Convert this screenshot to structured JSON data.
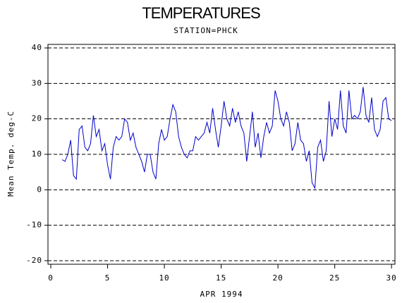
{
  "chart_data": {
    "type": "line",
    "title": "TEMPERATURES",
    "subtitle": "STATION=PHCK",
    "x_label": "APR 1994",
    "y_label": "Mean Temp. deg-C",
    "xlim": [
      -0.25,
      30.3
    ],
    "xticks": [
      0,
      5,
      10,
      15,
      20,
      25,
      30
    ],
    "ylim": [
      -21,
      41
    ],
    "yticks": [
      -20,
      -10,
      0,
      10,
      20,
      30,
      40
    ],
    "grid": true,
    "x": [
      1,
      1.25,
      1.5,
      1.75,
      2,
      2.25,
      2.5,
      2.75,
      3,
      3.25,
      3.5,
      3.75,
      4,
      4.25,
      4.5,
      4.75,
      5,
      5.25,
      5.5,
      5.75,
      6,
      6.25,
      6.5,
      6.75,
      7,
      7.25,
      7.5,
      7.75,
      8,
      8.25,
      8.5,
      8.75,
      9,
      9.25,
      9.5,
      9.75,
      10,
      10.25,
      10.5,
      10.75,
      11,
      11.25,
      11.5,
      11.75,
      12,
      12.25,
      12.5,
      12.75,
      13,
      13.25,
      13.5,
      13.75,
      14,
      14.25,
      14.5,
      14.75,
      15,
      15.25,
      15.5,
      15.75,
      16,
      16.25,
      16.5,
      16.75,
      17,
      17.25,
      17.5,
      17.75,
      18,
      18.25,
      18.5,
      18.75,
      19,
      19.25,
      19.5,
      19.75,
      20,
      20.25,
      20.5,
      20.75,
      21,
      21.25,
      21.5,
      21.75,
      22,
      22.25,
      22.5,
      22.75,
      23,
      23.25,
      23.5,
      23.75,
      24,
      24.25,
      24.5,
      24.75,
      25,
      25.25,
      25.5,
      25.75,
      26,
      26.25,
      26.5,
      26.75,
      27,
      27.25,
      27.5,
      27.75,
      28,
      28.25,
      28.5,
      28.75,
      29,
      29.25,
      29.5,
      29.75,
      30
    ],
    "series": [
      {
        "color": "#0000cc",
        "values": [
          8.5,
          8,
          10,
          14,
          4,
          3,
          17,
          18,
          12,
          11,
          13,
          21,
          15,
          17,
          11,
          13,
          7,
          3,
          12,
          15,
          14,
          15,
          20,
          19,
          14,
          16,
          12,
          10,
          8,
          5,
          10,
          10,
          5,
          3,
          13,
          17,
          14,
          15,
          20,
          24,
          22,
          15,
          12,
          10,
          9,
          11,
          11,
          15,
          14,
          15,
          16,
          19,
          16,
          23,
          17,
          12,
          18,
          25,
          20,
          18,
          23,
          19,
          22,
          18,
          16,
          8,
          15,
          22,
          12,
          16,
          9,
          15,
          19,
          16,
          18,
          28,
          25,
          20,
          18,
          22,
          19,
          11,
          13,
          19,
          14,
          13,
          8,
          11,
          2,
          0.5,
          12,
          14,
          8,
          11,
          25,
          15,
          20,
          17,
          28,
          18,
          16,
          28,
          20,
          21,
          20,
          22,
          29,
          21,
          19,
          26,
          17,
          15,
          17,
          25,
          26,
          20,
          19.5
        ]
      }
    ]
  }
}
